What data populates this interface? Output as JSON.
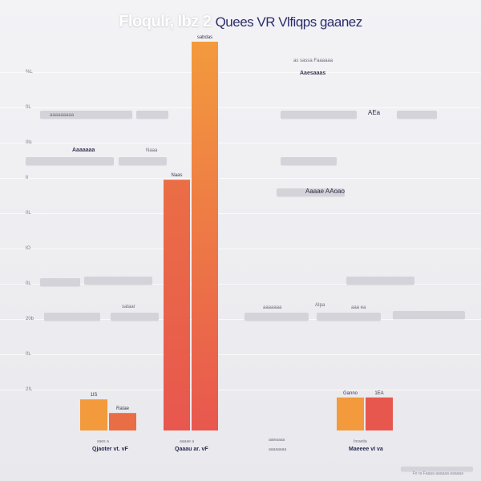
{
  "chart_data": {
    "type": "bar",
    "title": "Floqulr, Ibz 2",
    "title_alt": "Quees VR Vlfiqps gaanez",
    "ylim": [
      0,
      100
    ],
    "yticks": [
      "%L",
      "0L",
      "0ls",
      "lt",
      "0L",
      "lO",
      "0L",
      "20b",
      "0L",
      "2!L"
    ],
    "groups": [
      {
        "label": "Qjaoter vt. vF",
        "sublabel": "saes a",
        "values": [
          8,
          4.5
        ],
        "value_labels": [
          "1lS",
          "Ratae"
        ]
      },
      {
        "label": "Qaaau ar. vF",
        "sublabel": "aaaae a",
        "values": [
          64.5,
          100
        ],
        "value_labels": [
          "Naas",
          "sabdas"
        ]
      },
      {
        "label": "Maeeee vI va",
        "sublabel": "Inraetia",
        "values": [
          8.5,
          8.5
        ],
        "value_labels": [
          "Ganno",
          "1EA"
        ]
      }
    ],
    "middle_notes": [
      "aawaaaa",
      "aaaaaaaa"
    ],
    "grid": true,
    "colors": {
      "orange": "#f39a3d",
      "red": "#e8574e",
      "tomato": "#ea6e45"
    }
  },
  "annotations": [
    {
      "text": "as  sassa  Faaaaaa",
      "style": ""
    },
    {
      "text": "Aaesaaas",
      "style": "bold"
    },
    {
      "text": "AEa",
      "style": "big"
    },
    {
      "text": "Aaaaaaa",
      "style": "bold"
    },
    {
      "text": "Aaaae AAoao",
      "style": "big"
    },
    {
      "text": "aaaaaaaaa",
      "style": ""
    },
    {
      "text": "Naaa",
      "style": ""
    },
    {
      "text": "sataar",
      "style": ""
    },
    {
      "text": "AIpa",
      "style": ""
    },
    {
      "text": "aaaaaaa",
      "style": ""
    },
    {
      "text": "aaa ea",
      "style": ""
    }
  ],
  "footer": "Fo ra  Faaaa  aaaaaa  aaaaaa"
}
